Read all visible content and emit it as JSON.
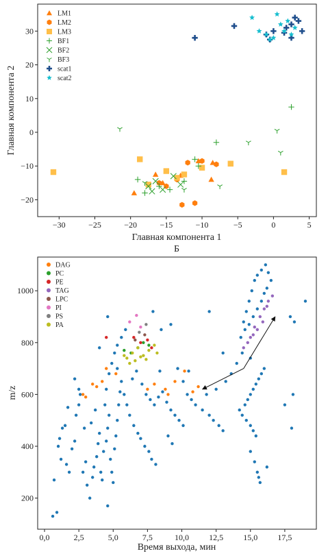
{
  "colors": {
    "LM1": "#ff7f0e",
    "LM2": "#ff7f0e",
    "LM3": "#ffbf4a",
    "BF1": "#2ca02c",
    "BF2": "#2ca02c",
    "BF3": "#2ca02c",
    "scat1": "#1f4e8c",
    "scat2": "#17becf",
    "bg_points": "#1f77b4",
    "DAG": "#ff7f0e",
    "PC": "#2ca02c",
    "PE": "#d62728",
    "TAG": "#9467bd",
    "LPC": "#8c564b",
    "PI": "#e377c2",
    "PS": "#7f7f7f",
    "PA": "#bcbd22"
  },
  "panel_labels": {
    "top_caption": "Б"
  },
  "chart_data": [
    {
      "type": "scatter",
      "xlabel": "Главная компонента 1",
      "ylabel": "Главная компонента 2",
      "xlim": [
        -33,
        6
      ],
      "ylim": [
        -25,
        38
      ],
      "xticks": [
        -30,
        -25,
        -20,
        -15,
        -10,
        -5,
        0,
        5
      ],
      "xtick_labels": [
        "−30",
        "−25",
        "−20",
        "−15",
        "−10",
        "−5",
        "0",
        "5"
      ],
      "yticks": [
        -20,
        -10,
        0,
        10,
        20,
        30
      ],
      "ytick_labels": [
        "−20",
        "−10",
        "0",
        "10",
        "20",
        "30"
      ],
      "legend_position": "top-left",
      "series": [
        {
          "name": "LM1",
          "marker": "triangle",
          "x": [
            -10.5,
            -19.5,
            -16.5,
            -13,
            -8.5,
            -8.7,
            -15.5
          ],
          "y": [
            -8.5,
            -18,
            -12.5,
            -12.8,
            -9,
            -14,
            -15
          ]
        },
        {
          "name": "LM2",
          "marker": "hexagon",
          "x": [
            -12,
            -10,
            -8,
            -16,
            -13.5,
            -11,
            -15,
            -12.8
          ],
          "y": [
            -9,
            -8.5,
            -9.5,
            -15,
            -14,
            -21,
            -16,
            -21.5
          ]
        },
        {
          "name": "LM3",
          "marker": "square",
          "x": [
            -30.8,
            -18.7,
            -15,
            -12.5,
            -10,
            -6,
            1.5,
            -17.5,
            -13.5
          ],
          "y": [
            -11.8,
            -8,
            -11.5,
            -12.5,
            -10.5,
            -9.3,
            -11.8,
            -15.5,
            -13.5
          ]
        },
        {
          "name": "BF1",
          "marker": "plus",
          "x": [
            -19,
            -18,
            -16,
            -14.5,
            -12.5,
            -10.5,
            2.5,
            -8,
            -11
          ],
          "y": [
            -14,
            -18,
            -16,
            -17,
            -14.5,
            -10,
            7.5,
            -3,
            -8
          ]
        },
        {
          "name": "BF2",
          "marker": "x",
          "x": [
            -17.5,
            -16.5,
            -15.5,
            -14,
            -13,
            -17
          ],
          "y": [
            -16,
            -14.5,
            -17,
            -13,
            -15.5,
            -17.5
          ]
        },
        {
          "name": "BF3",
          "marker": "tri",
          "x": [
            -21.5,
            -3.5,
            0.5,
            1,
            -7.5,
            -18,
            -12.5
          ],
          "y": [
            1,
            -3,
            0.5,
            -6,
            -16,
            -15,
            -17
          ]
        },
        {
          "name": "scat1",
          "marker": "plus-bold",
          "x": [
            -11,
            -5.5,
            -1,
            0,
            1.5,
            2.5,
            3,
            3.5,
            4,
            2.5,
            1.8,
            -0.5
          ],
          "y": [
            28,
            31.5,
            29,
            30,
            29.5,
            32,
            34,
            33,
            30,
            28,
            31,
            27.5
          ]
        },
        {
          "name": "scat2",
          "marker": "star",
          "x": [
            -3,
            -2,
            -1,
            0.5,
            1,
            2,
            3,
            1.5,
            0,
            -0.5,
            2.5
          ],
          "y": [
            34,
            30,
            29,
            35,
            32,
            33,
            31,
            30,
            28,
            27.5,
            29
          ]
        }
      ]
    },
    {
      "type": "scatter",
      "xlabel": "Время выхода, мин",
      "ylabel": "m/z",
      "xlim": [
        -0.5,
        19.8
      ],
      "ylim": [
        80,
        1130
      ],
      "xticks": [
        0,
        2.5,
        5,
        7.5,
        10,
        12.5,
        15,
        17.5
      ],
      "xtick_labels": [
        "0,0",
        "2,5",
        "5,0",
        "7,5",
        "10,0",
        "12,5",
        "15,0",
        "17,5"
      ],
      "yticks": [
        200,
        400,
        600,
        800,
        1000
      ],
      "ytick_labels": [
        "200",
        "400",
        "600",
        "800",
        "1000"
      ],
      "legend_position": "top-left",
      "legend": [
        "DAG",
        "PC",
        "PE",
        "TAG",
        "LPC",
        "PI",
        "PS",
        "PA"
      ],
      "arrows": [
        {
          "from": [
            14.5,
            700
          ],
          "to": [
            11.5,
            620
          ]
        },
        {
          "from": [
            14.5,
            700
          ],
          "to": [
            16.8,
            900
          ]
        }
      ],
      "labeled_series": [
        {
          "name": "DAG",
          "x": [
            2.8,
            3.5,
            4.2,
            4.5,
            3.8,
            5.2,
            7.5,
            8.0,
            9.5,
            10.2,
            10.8,
            11.2,
            8.8,
            9.0,
            3.0
          ],
          "y": [
            600,
            640,
            650,
            700,
            630,
            680,
            620,
            640,
            650,
            690,
            610,
            630,
            620,
            600,
            590
          ]
        },
        {
          "name": "PC",
          "x": [
            6.3,
            6.8,
            7.2,
            7.6,
            5.8
          ],
          "y": [
            760,
            780,
            800,
            790,
            770
          ]
        },
        {
          "name": "PE",
          "x": [
            6.5,
            7.0,
            7.5,
            4.5,
            7.8
          ],
          "y": [
            820,
            800,
            810,
            820,
            780
          ]
        },
        {
          "name": "TAG",
          "x": [
            14.5,
            15.0,
            15.3,
            15.7,
            16.0,
            16.3,
            16.6,
            15.5,
            14.8,
            16.2,
            15.9,
            15.2
          ],
          "y": [
            780,
            820,
            860,
            900,
            930,
            960,
            980,
            850,
            800,
            940,
            880,
            830
          ]
        },
        {
          "name": "LPC",
          "x": [
            6.6,
            7.3
          ],
          "y": [
            810,
            830
          ]
        },
        {
          "name": "PI",
          "x": [
            6.2,
            6.7,
            7.0
          ],
          "y": [
            880,
            905,
            860
          ]
        },
        {
          "name": "PS",
          "x": [
            6.9,
            7.4
          ],
          "y": [
            840,
            870
          ]
        },
        {
          "name": "PA",
          "x": [
            6.0,
            6.4,
            6.8,
            7.2,
            7.6,
            8.0,
            6.2,
            6.6,
            7.0,
            7.4,
            5.8,
            8.2
          ],
          "y": [
            740,
            760,
            780,
            750,
            770,
            790,
            720,
            730,
            745,
            735,
            750,
            760
          ]
        }
      ],
      "background_points": [
        [
          0.6,
          130
        ],
        [
          0.9,
          145
        ],
        [
          0.7,
          270
        ],
        [
          1.0,
          400
        ],
        [
          1.1,
          430
        ],
        [
          1.3,
          470
        ],
        [
          1.5,
          480
        ],
        [
          1.2,
          350
        ],
        [
          1.6,
          330
        ],
        [
          1.8,
          300
        ],
        [
          2.0,
          390
        ],
        [
          2.2,
          420
        ],
        [
          2.3,
          520
        ],
        [
          2.5,
          560
        ],
        [
          2.6,
          600
        ],
        [
          2.2,
          660
        ],
        [
          2.8,
          300
        ],
        [
          3.0,
          340
        ],
        [
          3.1,
          250
        ],
        [
          3.3,
          200
        ],
        [
          3.5,
          280
        ],
        [
          3.6,
          320
        ],
        [
          3.8,
          360
        ],
        [
          3.9,
          410
        ],
        [
          4.0,
          450
        ],
        [
          4.1,
          300
        ],
        [
          4.2,
          270
        ],
        [
          4.3,
          380
        ],
        [
          4.5,
          420
        ],
        [
          4.6,
          470
        ],
        [
          4.7,
          520
        ],
        [
          4.8,
          350
        ],
        [
          4.9,
          300
        ],
        [
          5.0,
          260
        ],
        [
          5.1,
          390
        ],
        [
          5.2,
          440
        ],
        [
          5.3,
          500
        ],
        [
          5.4,
          560
        ],
        [
          5.5,
          610
        ],
        [
          4.6,
          170
        ],
        [
          3.4,
          490
        ],
        [
          3.7,
          540
        ],
        [
          2.9,
          470
        ],
        [
          4.4,
          560
        ],
        [
          4.5,
          620
        ],
        [
          4.7,
          680
        ],
        [
          4.9,
          720
        ],
        [
          5.1,
          760
        ],
        [
          5.3,
          700
        ],
        [
          5.6,
          650
        ],
        [
          5.8,
          600
        ],
        [
          6.0,
          560
        ],
        [
          6.2,
          520
        ],
        [
          6.5,
          480
        ],
        [
          6.8,
          450
        ],
        [
          7.0,
          430
        ],
        [
          7.3,
          400
        ],
        [
          7.6,
          380
        ],
        [
          7.8,
          350
        ],
        [
          8.1,
          330
        ],
        [
          6.4,
          660
        ],
        [
          6.7,
          690
        ],
        [
          7.1,
          640
        ],
        [
          7.4,
          600
        ],
        [
          7.7,
          580
        ],
        [
          8.0,
          560
        ],
        [
          8.3,
          590
        ],
        [
          8.6,
          610
        ],
        [
          8.9,
          570
        ],
        [
          9.2,
          540
        ],
        [
          9.5,
          520
        ],
        [
          9.8,
          500
        ],
        [
          10.1,
          480
        ],
        [
          9.0,
          440
        ],
        [
          9.3,
          410
        ],
        [
          10.4,
          600
        ],
        [
          10.7,
          580
        ],
        [
          11.0,
          560
        ],
        [
          11.5,
          540
        ],
        [
          12.0,
          520
        ],
        [
          12.3,
          500
        ],
        [
          12.7,
          480
        ],
        [
          13.0,
          460
        ],
        [
          11.8,
          600
        ],
        [
          12.5,
          620
        ],
        [
          13.2,
          650
        ],
        [
          13.6,
          680
        ],
        [
          14.0,
          720
        ],
        [
          12.0,
          920
        ],
        [
          13.0,
          760
        ],
        [
          14.2,
          540
        ],
        [
          14.4,
          520
        ],
        [
          14.6,
          560
        ],
        [
          14.8,
          580
        ],
        [
          15.0,
          600
        ],
        [
          15.2,
          620
        ],
        [
          15.4,
          640
        ],
        [
          15.6,
          660
        ],
        [
          15.8,
          680
        ],
        [
          16.0,
          700
        ],
        [
          14.7,
          500
        ],
        [
          15.0,
          480
        ],
        [
          15.2,
          460
        ],
        [
          15.4,
          440
        ],
        [
          15.5,
          300
        ],
        [
          15.6,
          280
        ],
        [
          15.7,
          260
        ],
        [
          15.3,
          340
        ],
        [
          15.0,
          380
        ],
        [
          16.2,
          320
        ],
        [
          14.5,
          880
        ],
        [
          14.7,
          920
        ],
        [
          14.9,
          960
        ],
        [
          15.1,
          1000
        ],
        [
          15.3,
          1040
        ],
        [
          15.5,
          1060
        ],
        [
          15.8,
          1080
        ],
        [
          16.1,
          1100
        ],
        [
          16.3,
          1070
        ],
        [
          16.5,
          1040
        ],
        [
          14.3,
          820
        ],
        [
          14.6,
          850
        ],
        [
          14.9,
          870
        ],
        [
          15.2,
          900
        ],
        [
          15.5,
          930
        ],
        [
          15.8,
          960
        ],
        [
          16.0,
          990
        ],
        [
          16.2,
          1010
        ],
        [
          14.4,
          760
        ],
        [
          15.0,
          740
        ],
        [
          17.9,
          900
        ],
        [
          18.2,
          880
        ],
        [
          19.0,
          960
        ],
        [
          18.1,
          600
        ],
        [
          18.0,
          470
        ],
        [
          17.5,
          560
        ],
        [
          2.5,
          620
        ],
        [
          1.7,
          550
        ],
        [
          8.5,
          850
        ],
        [
          9.2,
          870
        ],
        [
          5.3,
          790
        ],
        [
          5.6,
          820
        ],
        [
          5.9,
          850
        ],
        [
          4.6,
          900
        ],
        [
          4.0,
          780
        ],
        [
          7.9,
          920
        ],
        [
          8.4,
          690
        ],
        [
          10.1,
          650
        ],
        [
          10.5,
          690
        ],
        [
          9.7,
          700
        ]
      ]
    }
  ]
}
